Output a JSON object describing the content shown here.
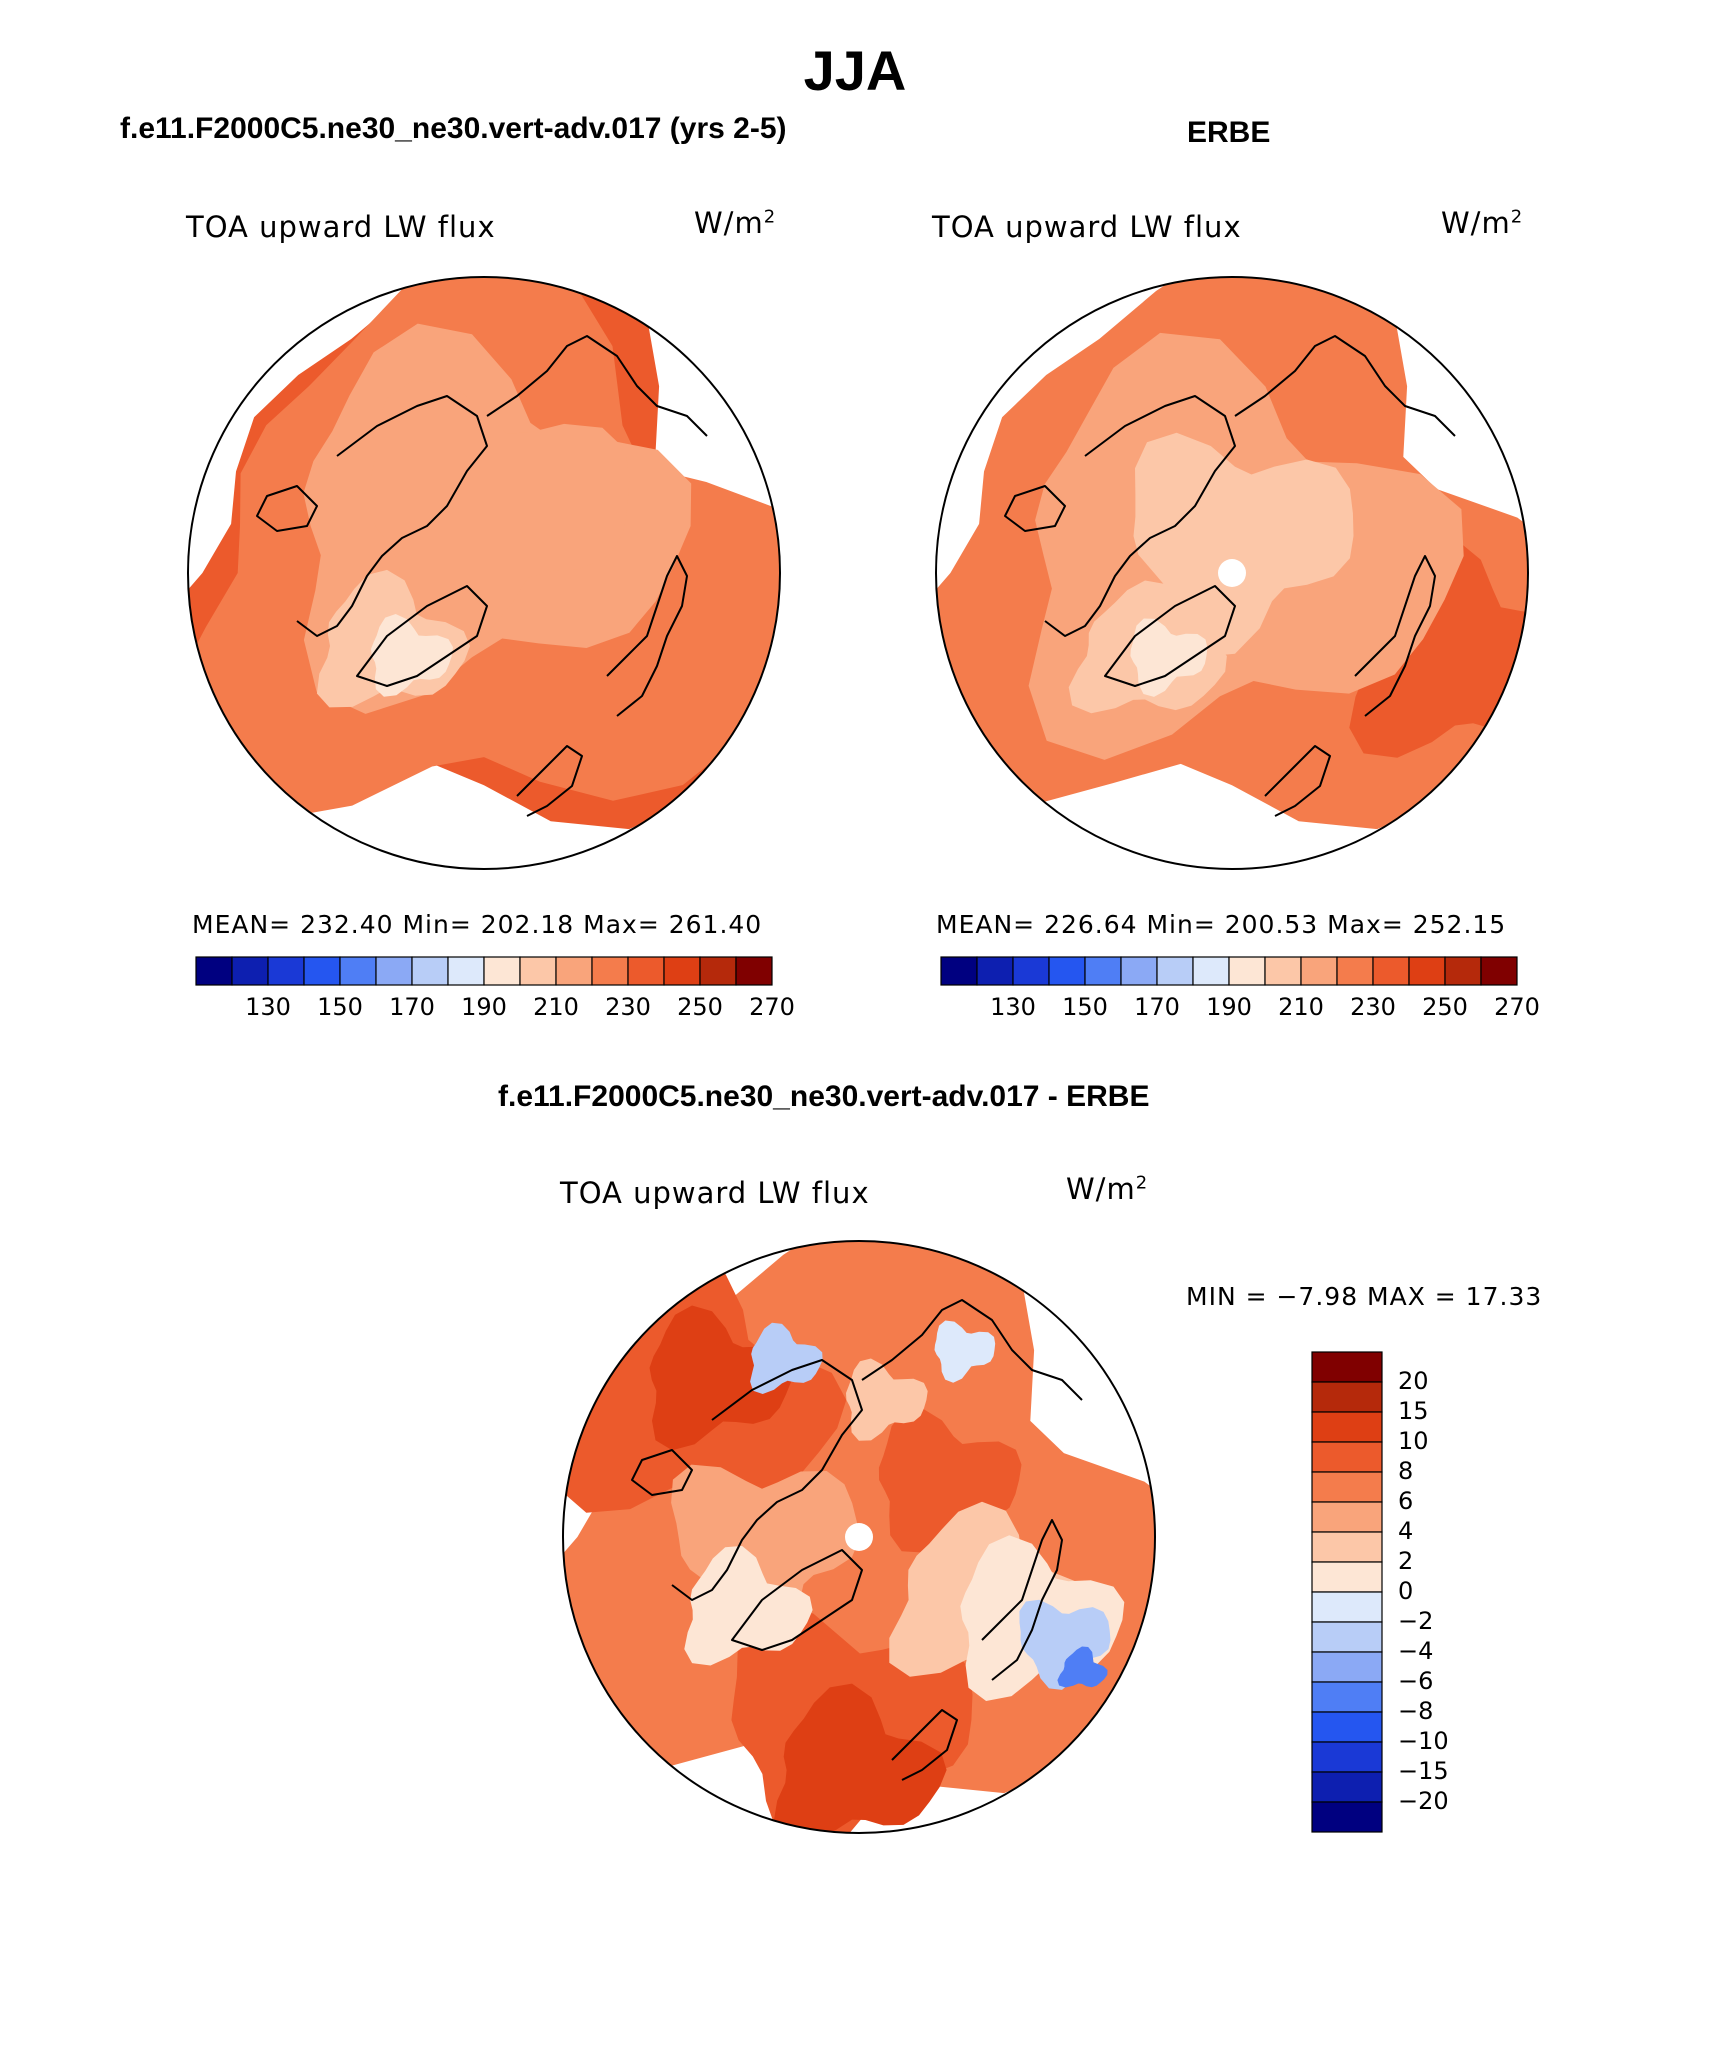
{
  "title": "JJA",
  "colors": {
    "levels": [
      "#000080",
      "#0d1fb0",
      "#1a39d6",
      "#2556f0",
      "#4f7ef5",
      "#8ba9f5",
      "#b8cdf7",
      "#dde9fb",
      "#fde6d5",
      "#fcc7a8",
      "#f9a47b",
      "#f47c4c",
      "#ec5a2c",
      "#de3f14",
      "#b5290b",
      "#800000"
    ],
    "coast": "#000000"
  },
  "panels": {
    "model": {
      "title": "f.e11.F2000C5.ne30_ne30.vert-adv.017 (yrs 2-5)",
      "variable": "TOA upward LW flux",
      "units_base": "W/m",
      "units_exp": "2",
      "stats": "MEAN= 232.40   Min= 202.18   Max= 261.40"
    },
    "obs": {
      "title": "ERBE",
      "variable": "TOA upward LW flux",
      "units_base": "W/m",
      "units_exp": "2",
      "stats": "MEAN= 226.64   Min= 200.53   Max= 252.15"
    },
    "diff": {
      "title": "f.e11.F2000C5.ne30_ne30.vert-adv.017 - ERBE",
      "variable": "TOA upward LW flux",
      "units_base": "W/m",
      "units_exp": "2",
      "minmax": "MIN =  −7.98  MAX =   17.33"
    }
  },
  "abs_colorbar_ticks": [
    "130",
    "150",
    "170",
    "190",
    "210",
    "230",
    "250",
    "270"
  ],
  "diff_colorbar_levels": [
    "20",
    "15",
    "10",
    "8",
    "6",
    "4",
    "2",
    "0",
    "−2",
    "−4",
    "−6",
    "−8",
    "−10",
    "−15",
    "−20"
  ]
}
